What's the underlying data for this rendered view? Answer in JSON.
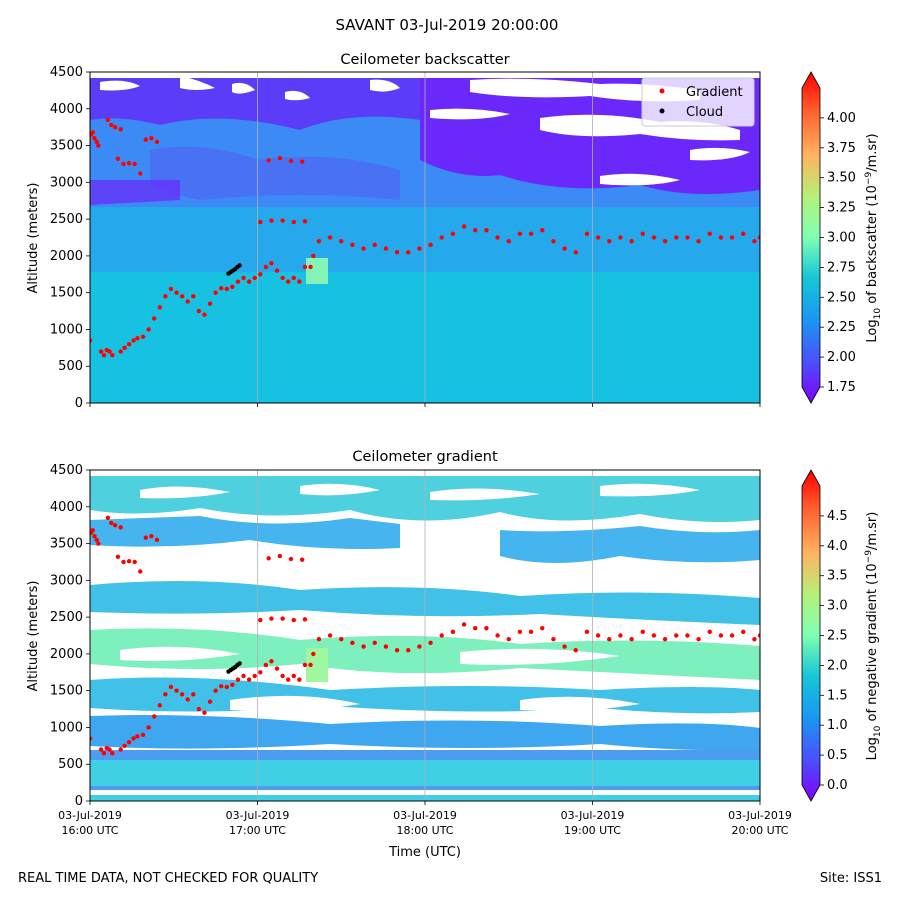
{
  "suptitle": "SAVANT 03-Jul-2019 20:00:00",
  "footer_left": "REAL TIME DATA, NOT CHECKED FOR QUALITY",
  "footer_right": "Site: ISS1",
  "chart_data": [
    {
      "type": "heatmap",
      "title": "Ceilometer backscatter",
      "ylabel": "Altitude (meters)",
      "xlabel": "",
      "xlim": [
        "03-Jul-2019 16:00 UTC",
        "03-Jul-2019 20:00 UTC"
      ],
      "ylim": [
        0,
        4500
      ],
      "x_tick_labels": [],
      "y_ticks": [
        0,
        500,
        1000,
        1500,
        2000,
        2500,
        3000,
        3500,
        4000,
        4500
      ],
      "grid": true,
      "colorbar": {
        "label_prefix": "Log",
        "label_sub": "10",
        "label_mid": " of backscatter (10",
        "label_sup": "−9",
        "label_suffix": "/m.sr)",
        "range": [
          1.75,
          4.25
        ],
        "ticks": [
          1.75,
          2.0,
          2.25,
          2.5,
          2.75,
          3.0,
          3.25,
          3.5,
          3.75,
          4.0
        ],
        "tick_labels": [
          "1.75",
          "2.00",
          "2.25",
          "2.50",
          "2.75",
          "3.00",
          "3.25",
          "3.50",
          "3.75",
          "4.00"
        ]
      },
      "legend": {
        "placement": "upper right",
        "entries": [
          {
            "name": "Gradient",
            "color": "#ff0000"
          },
          {
            "name": "Cloud",
            "color": "#000000"
          }
        ]
      },
      "series": [
        {
          "name": "Gradient",
          "color": "#ff0000",
          "points": [
            [
              0.0,
              850
            ],
            [
              0.02,
              3650
            ],
            [
              0.05,
              3680
            ],
            [
              0.08,
              3600
            ],
            [
              0.12,
              3550
            ],
            [
              0.15,
              3500
            ],
            [
              0.2,
              700
            ],
            [
              0.25,
              650
            ],
            [
              0.3,
              720
            ],
            [
              0.35,
              700
            ],
            [
              0.4,
              650
            ],
            [
              0.32,
              3850
            ],
            [
              0.38,
              3780
            ],
            [
              0.45,
              3750
            ],
            [
              0.55,
              3720
            ],
            [
              0.5,
              3320
            ],
            [
              0.6,
              3250
            ],
            [
              0.7,
              3260
            ],
            [
              0.8,
              3250
            ],
            [
              0.9,
              3120
            ],
            [
              1.0,
              3580
            ],
            [
              1.1,
              3600
            ],
            [
              1.2,
              3550
            ],
            [
              0.55,
              700
            ],
            [
              0.62,
              750
            ],
            [
              0.7,
              800
            ],
            [
              0.78,
              850
            ],
            [
              0.85,
              880
            ],
            [
              0.95,
              900
            ],
            [
              1.05,
              1000
            ],
            [
              1.15,
              1150
            ],
            [
              1.25,
              1300
            ],
            [
              1.35,
              1450
            ],
            [
              1.45,
              1550
            ],
            [
              1.55,
              1500
            ],
            [
              1.65,
              1450
            ],
            [
              1.75,
              1380
            ],
            [
              1.85,
              1450
            ],
            [
              1.95,
              1250
            ],
            [
              2.05,
              1200
            ],
            [
              2.15,
              1350
            ],
            [
              2.25,
              1500
            ],
            [
              2.35,
              1560
            ],
            [
              2.45,
              1550
            ],
            [
              2.55,
              1580
            ],
            [
              2.65,
              1650
            ],
            [
              2.75,
              1700
            ],
            [
              2.85,
              1650
            ],
            [
              2.95,
              1700
            ],
            [
              3.05,
              1750
            ],
            [
              3.15,
              1850
            ],
            [
              3.25,
              1900
            ],
            [
              3.35,
              1800
            ],
            [
              3.45,
              1700
            ],
            [
              3.55,
              1650
            ],
            [
              3.65,
              1700
            ],
            [
              3.75,
              1650
            ],
            [
              3.85,
              1850
            ],
            [
              3.95,
              1850
            ],
            [
              4.0,
              2000
            ],
            [
              4.1,
              2200
            ],
            [
              4.3,
              2250
            ],
            [
              4.5,
              2200
            ],
            [
              4.7,
              2150
            ],
            [
              4.9,
              2100
            ],
            [
              5.1,
              2150
            ],
            [
              5.3,
              2100
            ],
            [
              5.5,
              2050
            ],
            [
              5.7,
              2050
            ],
            [
              5.9,
              2100
            ],
            [
              6.1,
              2150
            ],
            [
              6.3,
              2250
            ],
            [
              6.5,
              2300
            ],
            [
              6.7,
              2400
            ],
            [
              6.9,
              2350
            ],
            [
              7.1,
              2350
            ],
            [
              7.3,
              2250
            ],
            [
              7.5,
              2200
            ],
            [
              7.7,
              2300
            ],
            [
              7.9,
              2300
            ],
            [
              8.1,
              2350
            ],
            [
              8.3,
              2200
            ],
            [
              8.5,
              2100
            ],
            [
              8.7,
              2050
            ],
            [
              8.9,
              2300
            ],
            [
              9.1,
              2250
            ],
            [
              9.3,
              2200
            ],
            [
              9.5,
              2250
            ],
            [
              9.7,
              2200
            ],
            [
              9.9,
              2300
            ],
            [
              10.1,
              2250
            ],
            [
              10.3,
              2200
            ],
            [
              10.5,
              2250
            ],
            [
              10.7,
              2250
            ],
            [
              10.9,
              2200
            ],
            [
              11.1,
              2300
            ],
            [
              11.3,
              2250
            ],
            [
              11.5,
              2250
            ],
            [
              11.7,
              2300
            ],
            [
              11.9,
              2200
            ],
            [
              12.0,
              2250
            ],
            [
              3.2,
              3300
            ],
            [
              3.4,
              3330
            ],
            [
              3.6,
              3290
            ],
            [
              3.8,
              3280
            ],
            [
              3.05,
              2460
            ],
            [
              3.25,
              2480
            ],
            [
              3.45,
              2480
            ],
            [
              3.65,
              2460
            ],
            [
              3.85,
              2470
            ]
          ]
        },
        {
          "name": "Cloud",
          "color": "#000000",
          "points": [
            [
              2.48,
              1760
            ],
            [
              2.52,
              1780
            ],
            [
              2.56,
              1800
            ],
            [
              2.6,
              1820
            ],
            [
              2.64,
              1850
            ],
            [
              2.68,
              1870
            ]
          ]
        }
      ]
    },
    {
      "type": "heatmap",
      "title": "Ceilometer gradient",
      "ylabel": "Altitude (meters)",
      "xlabel": "Time (UTC)",
      "xlim": [
        "03-Jul-2019 16:00 UTC",
        "03-Jul-2019 20:00 UTC"
      ],
      "ylim": [
        0,
        4500
      ],
      "x_ticks": [
        {
          "date": "03-Jul-2019",
          "time": "16:00 UTC"
        },
        {
          "date": "03-Jul-2019",
          "time": "17:00 UTC"
        },
        {
          "date": "03-Jul-2019",
          "time": "18:00 UTC"
        },
        {
          "date": "03-Jul-2019",
          "time": "19:00 UTC"
        },
        {
          "date": "03-Jul-2019",
          "time": "20:00 UTC"
        }
      ],
      "y_ticks": [
        0,
        500,
        1000,
        1500,
        2000,
        2500,
        3000,
        3500,
        4000,
        4500
      ],
      "grid": true,
      "colorbar": {
        "label_prefix": "Log",
        "label_sub": "10",
        "label_mid": " of negative gradient (10",
        "label_sup": "−9",
        "label_suffix": "/m.sr)",
        "range": [
          0.0,
          5.0
        ],
        "ticks": [
          0.0,
          0.5,
          1.0,
          1.5,
          2.0,
          2.5,
          3.0,
          3.5,
          4.0,
          4.5
        ],
        "tick_labels": [
          "0.0",
          "0.5",
          "1.0",
          "1.5",
          "2.0",
          "2.5",
          "3.0",
          "3.5",
          "4.0",
          "4.5"
        ]
      },
      "series": [
        {
          "name": "Gradient",
          "color": "#ff0000",
          "points": "same as backscatter panel"
        },
        {
          "name": "Cloud",
          "color": "#000000",
          "points": "same as backscatter panel"
        }
      ]
    }
  ]
}
